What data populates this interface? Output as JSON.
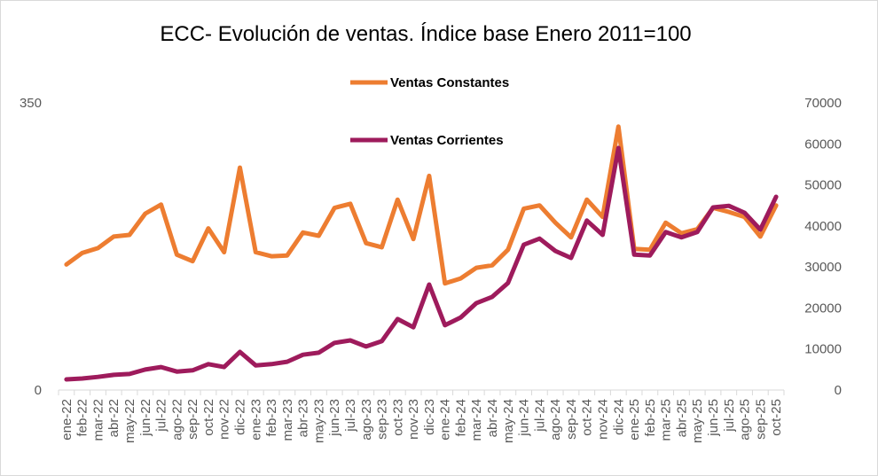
{
  "chart_data": {
    "type": "line",
    "title": "ECC- Evolución de ventas. Índice base Enero 2011=100",
    "categories": [
      "ene-22",
      "feb-22",
      "mar-22",
      "abr-22",
      "may-22",
      "jun-22",
      "jul-22",
      "ago-22",
      "sep-22",
      "oct-22",
      "nov-22",
      "dic-22",
      "ene-23",
      "feb-23",
      "mar-23",
      "abr-23",
      "may-23",
      "jun-23",
      "jul-23",
      "ago-23",
      "sep-23",
      "oct-23",
      "nov-23",
      "dic-23",
      "ene-24",
      "feb-24",
      "mar-24",
      "abr-24",
      "may-24",
      "jun-24",
      "jul-24",
      "ago-24",
      "sep-24",
      "oct-24",
      "nov-24",
      "dic-24",
      "ene-25",
      "feb-25",
      "mar-25",
      "abr-25",
      "may-25",
      "jun-25",
      "jul-25",
      "ago-25",
      "sep-25",
      "oct-25"
    ],
    "left_axis": {
      "ylim": [
        0,
        350
      ],
      "tick_labels": [
        "0",
        "350"
      ]
    },
    "right_axis": {
      "ylim": [
        0,
        70000
      ],
      "tick_labels": [
        "0",
        "10000",
        "20000",
        "30000",
        "40000",
        "50000",
        "60000",
        "70000"
      ]
    },
    "legend_placement": "top-center",
    "series": [
      {
        "name": "Ventas Constantes",
        "axis": "left",
        "color": "#ED7D31",
        "values": [
          153,
          167,
          173,
          187,
          189,
          215,
          226,
          165,
          157,
          197,
          168,
          271,
          168,
          163,
          164,
          192,
          188,
          222,
          227,
          179,
          174,
          232,
          184,
          261,
          130,
          136,
          149,
          152,
          171,
          221,
          225,
          204,
          186,
          232,
          211,
          321,
          172,
          171,
          204,
          191,
          196,
          222,
          217,
          211,
          187,
          225
        ]
      },
      {
        "name": "Ventas Corrientes",
        "axis": "right",
        "color": "#9E1B5C",
        "values": [
          2600,
          2800,
          3200,
          3700,
          3900,
          5000,
          5600,
          4500,
          4800,
          6300,
          5600,
          9300,
          6000,
          6300,
          6900,
          8600,
          9100,
          11500,
          12100,
          10600,
          11900,
          17300,
          15300,
          25700,
          15800,
          17700,
          21200,
          22700,
          26100,
          35400,
          36900,
          33900,
          32200,
          41300,
          37800,
          59000,
          33000,
          32800,
          38500,
          37200,
          38500,
          44500,
          44900,
          43200,
          39100,
          47100
        ]
      }
    ]
  }
}
